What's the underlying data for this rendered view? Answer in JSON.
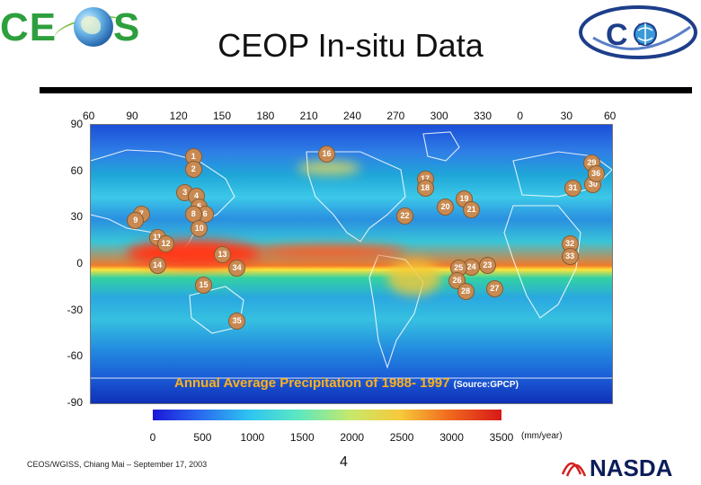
{
  "header": {
    "ceos_logo_text": {
      "left": "CE",
      "right": "S"
    },
    "title": "CEOP In-situ Data",
    "ceop_logo_text": "C  P"
  },
  "map": {
    "longitude_ticks": [
      "60",
      "90",
      "120",
      "150",
      "180",
      "210",
      "240",
      "270",
      "300",
      "330",
      "0",
      "30",
      "60"
    ],
    "latitude_ticks": [
      "90",
      "60",
      "30",
      "0",
      "-30",
      "-60",
      "-90"
    ],
    "caption": "Annual Average Precipitation of 1988- 1997",
    "source": "(Source:GPCP)",
    "colorbar_ticks": [
      "0",
      "500",
      "1000",
      "1500",
      "2000",
      "2500",
      "3000",
      "3500"
    ],
    "colorbar_unit": "(mm/year)",
    "colorbar_range": [
      0,
      3500
    ],
    "colors": {
      "low": "#1a18d8",
      "high": "#d81818"
    },
    "stations": [
      {
        "id": "1",
        "lon": 130,
        "lat": 70
      },
      {
        "id": "2",
        "lon": 130,
        "lat": 62
      },
      {
        "id": "3",
        "lon": 124,
        "lat": 47
      },
      {
        "id": "4",
        "lon": 132,
        "lat": 45
      },
      {
        "id": "5",
        "lon": 134,
        "lat": 38
      },
      {
        "id": "6",
        "lon": 138,
        "lat": 33
      },
      {
        "id": "7",
        "lon": 94,
        "lat": 33
      },
      {
        "id": "8",
        "lon": 130,
        "lat": 33
      },
      {
        "id": "9",
        "lon": 90,
        "lat": 29
      },
      {
        "id": "10",
        "lon": 134,
        "lat": 24
      },
      {
        "id": "11",
        "lon": 105,
        "lat": 18
      },
      {
        "id": "12",
        "lon": 111,
        "lat": 14
      },
      {
        "id": "13",
        "lon": 150,
        "lat": 7
      },
      {
        "id": "14",
        "lon": 105,
        "lat": 0
      },
      {
        "id": "15",
        "lon": 137,
        "lat": -13
      },
      {
        "id": "16",
        "lon": 222,
        "lat": 72
      },
      {
        "id": "17",
        "lon": 290,
        "lat": 56
      },
      {
        "id": "18",
        "lon": 290,
        "lat": 50
      },
      {
        "id": "19",
        "lon": 317,
        "lat": 43
      },
      {
        "id": "20",
        "lon": 304,
        "lat": 38
      },
      {
        "id": "21",
        "lon": 322,
        "lat": 36
      },
      {
        "id": "22",
        "lon": 276,
        "lat": 32
      },
      {
        "id": "23",
        "lon": 333,
        "lat": 0
      },
      {
        "id": "24",
        "lon": 322,
        "lat": -1
      },
      {
        "id": "25",
        "lon": 313,
        "lat": -2
      },
      {
        "id": "26",
        "lon": 312,
        "lat": -10
      },
      {
        "id": "27",
        "lon": 338,
        "lat": -15
      },
      {
        "id": "28",
        "lon": 318,
        "lat": -17
      },
      {
        "id": "29",
        "lon": 405,
        "lat": 66
      },
      {
        "id": "30",
        "lon": 406,
        "lat": 52
      },
      {
        "id": "31",
        "lon": 392,
        "lat": 50
      },
      {
        "id": "32",
        "lon": 390,
        "lat": 14
      },
      {
        "id": "33",
        "lon": 390,
        "lat": 6
      },
      {
        "id": "34",
        "lon": 160,
        "lat": -2
      },
      {
        "id": "35",
        "lon": 160,
        "lat": -36
      },
      {
        "id": "36",
        "lon": 408,
        "lat": 59
      }
    ]
  },
  "footer": {
    "conference": "CEOS/WGISS, Chiang Mai – September 17, 2003",
    "page_number": "4",
    "nasda_text": "NASDA"
  }
}
